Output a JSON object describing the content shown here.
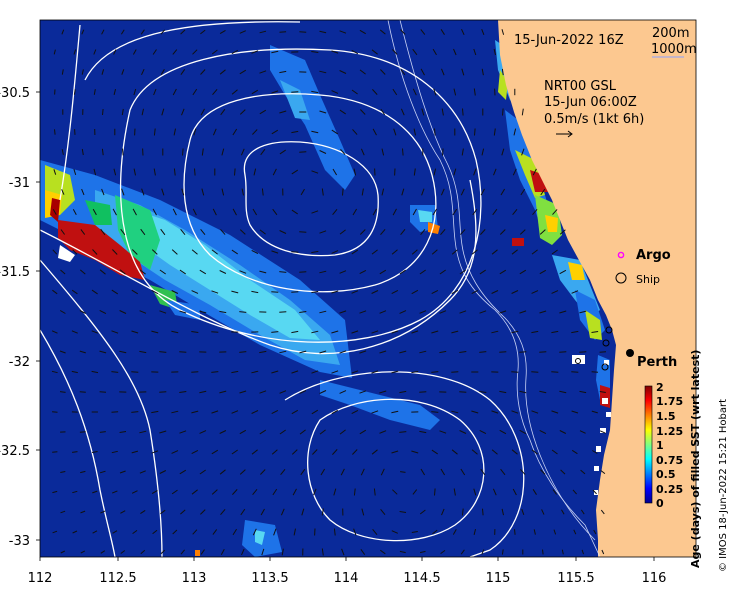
{
  "map": {
    "date_label": "15-Jun-2022 16Z",
    "contour_legend": [
      "200m",
      "1000m"
    ],
    "current_info": [
      "NRT00 GSL",
      "15-Jun 06:00Z",
      "0.5m/s (1kt 6h)"
    ],
    "lon_ticks": [
      "112",
      "112.5",
      "113",
      "113.5",
      "114",
      "114.5",
      "115",
      "115.5",
      "116"
    ],
    "lat_ticks": [
      "-30.5",
      "-31",
      "-31.5",
      "-32",
      "-32.5",
      "-33"
    ],
    "legend_argo": "Argo",
    "legend_ship": "Ship",
    "city_label": "Perth",
    "colorbar_ticks": [
      "2",
      "1.75",
      "1.5",
      "1.25",
      "1",
      "0.75",
      "0.5",
      "0.25",
      "0"
    ],
    "colorbar_title": "Age (days) of filled SST (wrt latest)",
    "credit": "© IMOS 18-Jun-2022 15:21 Hobart",
    "colors": {
      "ocean": "#0a2a9a",
      "land": "#fcc890",
      "argo": "#ff00ff",
      "colorbar": [
        "#00008f",
        "#0000ff",
        "#0080ff",
        "#00ffff",
        "#80ff80",
        "#ffff00",
        "#ff8000",
        "#ff0000",
        "#800000"
      ]
    }
  }
}
